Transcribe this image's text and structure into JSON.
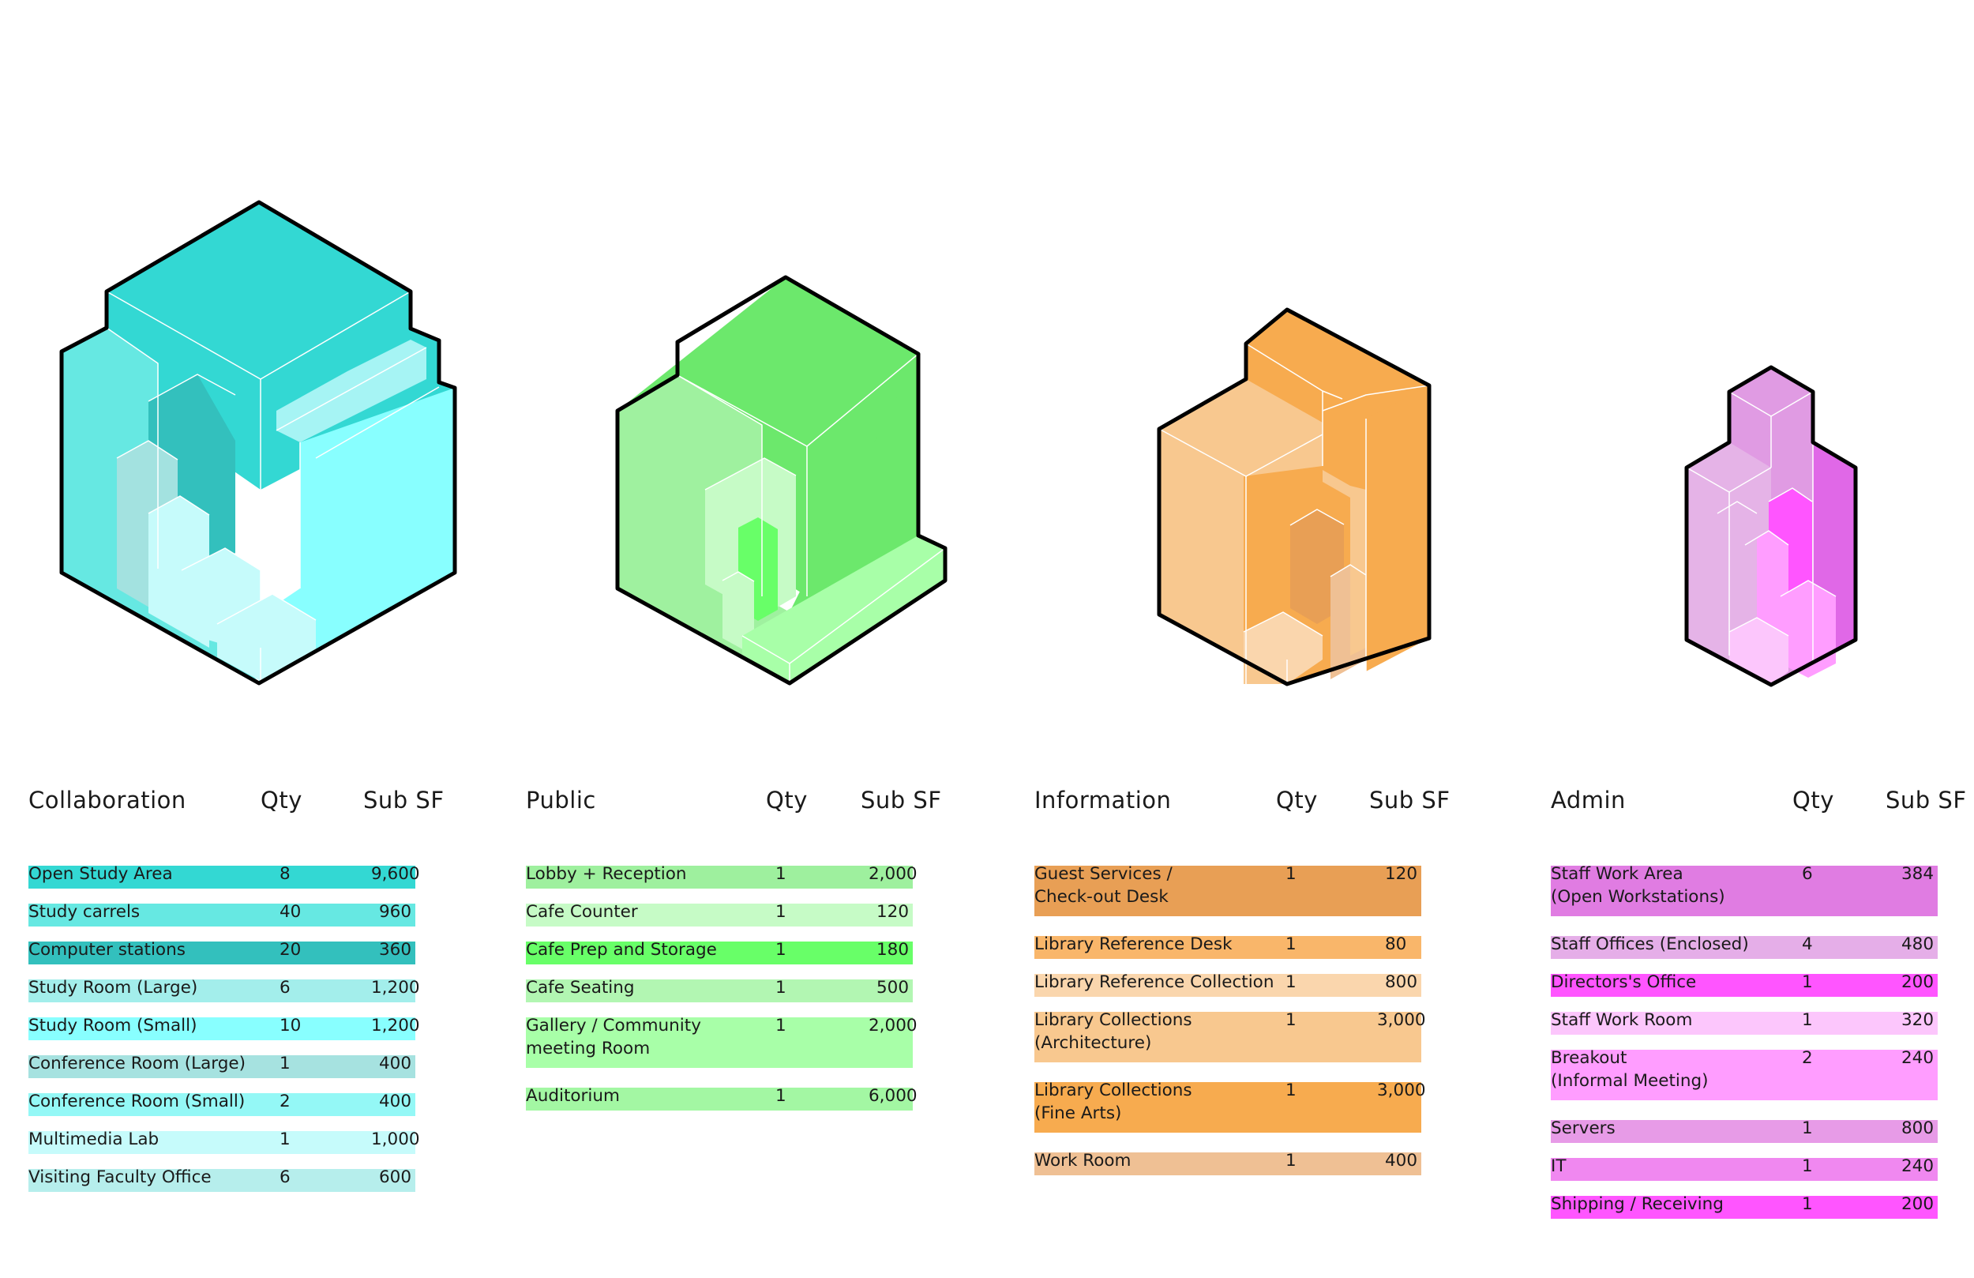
{
  "colors": {
    "collaboration": {
      "top": "#33d8d3",
      "left": "#66e8e2",
      "right": "#88ffff",
      "outline": "#000000"
    },
    "public": {
      "top": "#6ce86c",
      "left": "#9ff19f",
      "right": "#6ce86c",
      "outline": "#000000"
    },
    "information": {
      "top": "#f7ab4f",
      "left": "#f8c88f",
      "right": "#f7ab4f",
      "outline": "#000000"
    },
    "admin": {
      "top": "#e09be3",
      "left": "#e5b3e7",
      "right": "#e068e7",
      "outline": "#000000"
    }
  },
  "tables": [
    {
      "key": "collaboration",
      "title": "Collaboration",
      "qty_header": "Qty",
      "sf_header": "Sub SF",
      "rows": [
        {
          "name": "Open Study Area",
          "qty": "8",
          "sf": "9,600",
          "color": "#33d8d3"
        },
        {
          "name": "Study carrels",
          "qty": "40",
          "sf": "960",
          "color": "#66e8e2"
        },
        {
          "name": "Computer stations",
          "qty": "20",
          "sf": "360",
          "color": "#33c0bd"
        },
        {
          "name": "Study Room (Large)",
          "qty": "6",
          "sf": "1,200",
          "color": "#a3eeeb"
        },
        {
          "name": "Study Room (Small)",
          "qty": "10",
          "sf": "1,200",
          "color": "#88ffff"
        },
        {
          "name": "Conference Room (Large)",
          "qty": "1",
          "sf": "400",
          "color": "#a6e2e0"
        },
        {
          "name": "Conference Room (Small)",
          "qty": "2",
          "sf": "400",
          "color": "#94f8f6"
        },
        {
          "name": "Multimedia Lab",
          "qty": "1",
          "sf": "1,000",
          "color": "#c6fbfb"
        },
        {
          "name": "Visiting Faculty Office",
          "qty": "6",
          "sf": "600",
          "color": "#b6eeec"
        }
      ]
    },
    {
      "key": "public",
      "title": "Public",
      "qty_header": "Qty",
      "sf_header": "Sub SF",
      "rows": [
        {
          "name": "Lobby + Reception",
          "qty": "1",
          "sf": "2,000",
          "color": "#9ef09e"
        },
        {
          "name": "Cafe Counter",
          "qty": "1",
          "sf": "120",
          "color": "#c6fbc6"
        },
        {
          "name": "Cafe Prep and Storage",
          "qty": "1",
          "sf": "180",
          "color": "#68ff68"
        },
        {
          "name": "Cafe Seating",
          "qty": "1",
          "sf": "500",
          "color": "#b2f6b2"
        },
        {
          "name": "Gallery / Community\nmeeting Room",
          "qty": "1",
          "sf": "2,000",
          "color": "#a8ffa8"
        },
        {
          "name": "Auditorium",
          "qty": "1",
          "sf": "6,000",
          "color": "#a3f7a3"
        }
      ]
    },
    {
      "key": "information",
      "title": "Information",
      "qty_header": "Qty",
      "sf_header": "Sub SF",
      "rows": [
        {
          "name": "Guest Services /\nCheck-out Desk",
          "qty": "1",
          "sf": "120",
          "color": "#e89f55"
        },
        {
          "name": "Library Reference Desk",
          "qty": "1",
          "sf": "80",
          "color": "#f9b66a"
        },
        {
          "name": "Library Reference Collection",
          "qty": "1",
          "sf": "800",
          "color": "#fad6ad"
        },
        {
          "name": "Library Collections\n(Architecture)",
          "qty": "1",
          "sf": "3,000",
          "color": "#f8c88f"
        },
        {
          "name": "Library Collections\n(Fine Arts)",
          "qty": "1",
          "sf": "3,000",
          "color": "#f7ab4f"
        },
        {
          "name": "Work Room",
          "qty": "1",
          "sf": "400",
          "color": "#efc094"
        }
      ]
    },
    {
      "key": "admin",
      "title": "Admin",
      "qty_header": "Qty",
      "sf_header": "Sub SF",
      "rows": [
        {
          "name": "Staff Work Area\n(Open Workstations)",
          "qty": "6",
          "sf": "384",
          "color": "#e07ce2"
        },
        {
          "name": "Staff Offices (Enclosed)",
          "qty": "4",
          "sf": "480",
          "color": "#e5aee8"
        },
        {
          "name": "Directors's Office",
          "qty": "1",
          "sf": "200",
          "color": "#ff55ff"
        },
        {
          "name": "Staff Work Room",
          "qty": "1",
          "sf": "320",
          "color": "#fcc6fc"
        },
        {
          "name": "Breakout\n(Informal Meeting)",
          "qty": "2",
          "sf": "240",
          "color": "#ff9dff"
        },
        {
          "name": "Servers",
          "qty": "1",
          "sf": "800",
          "color": "#e79be7"
        },
        {
          "name": "IT",
          "qty": "1",
          "sf": "240",
          "color": "#f088f0"
        },
        {
          "name": "Shipping / Receiving",
          "qty": "1",
          "sf": "200",
          "color": "#ff55ff"
        }
      ]
    }
  ]
}
